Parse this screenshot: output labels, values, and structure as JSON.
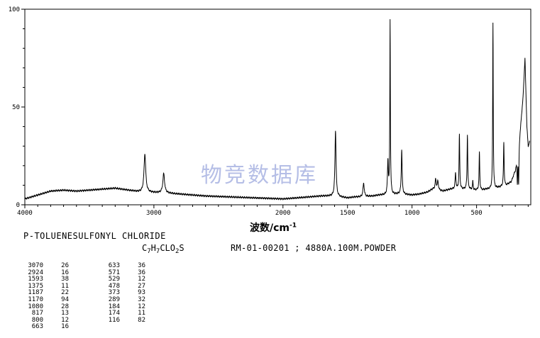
{
  "chart_data": {
    "type": "line",
    "title": "",
    "xlabel": "波数/cm",
    "xlabel_sup": "-1",
    "ylabel": "",
    "xlim": [
      4000,
      80
    ],
    "ylim": [
      0,
      100
    ],
    "x_reversed": true,
    "x_ticks": [
      {
        "value": 4000,
        "label": "4000"
      },
      {
        "value": 3000,
        "label": "3000"
      },
      {
        "value": 2000,
        "label": "2000"
      },
      {
        "value": 1500,
        "label": "1500"
      },
      {
        "value": 1000,
        "label": "1000"
      },
      {
        "value": 500,
        "label": "500"
      }
    ],
    "y_ticks": [
      {
        "value": 100,
        "label": "100"
      },
      {
        "value": 50,
        "label": "50"
      },
      {
        "value": 0,
        "label": "0"
      }
    ],
    "grid": false,
    "line_color": "#000000",
    "baseline_points": [
      [
        4000,
        3
      ],
      [
        3900,
        5
      ],
      [
        3800,
        7
      ],
      [
        3700,
        7.5
      ],
      [
        3600,
        7
      ],
      [
        3500,
        7.5
      ],
      [
        3400,
        8
      ],
      [
        3300,
        8.5
      ],
      [
        3200,
        7.5
      ],
      [
        3100,
        6.5
      ],
      [
        2900,
        6
      ],
      [
        2800,
        5.5
      ],
      [
        2700,
        5
      ],
      [
        2600,
        4.5
      ],
      [
        2400,
        4
      ],
      [
        2200,
        3.5
      ],
      [
        2000,
        3
      ],
      [
        1800,
        4
      ],
      [
        1700,
        4.5
      ],
      [
        1640,
        4.5
      ],
      [
        1560,
        4
      ],
      [
        1500,
        3.5
      ],
      [
        1440,
        4
      ],
      [
        1400,
        4
      ],
      [
        1300,
        4.5
      ],
      [
        1250,
        5
      ],
      [
        1200,
        5
      ],
      [
        1100,
        5.5
      ],
      [
        1000,
        5
      ],
      [
        940,
        5.5
      ],
      [
        880,
        6.5
      ],
      [
        840,
        8
      ],
      [
        800,
        7.5
      ],
      [
        760,
        7
      ],
      [
        700,
        8
      ],
      [
        650,
        8
      ],
      [
        600,
        8
      ],
      [
        560,
        8
      ],
      [
        520,
        7.5
      ],
      [
        460,
        7.5
      ],
      [
        420,
        8
      ],
      [
        380,
        8
      ],
      [
        320,
        9
      ],
      [
        270,
        10
      ],
      [
        230,
        12
      ],
      [
        200,
        18
      ],
      [
        180,
        28
      ],
      [
        160,
        40
      ],
      [
        140,
        55
      ],
      [
        125,
        75
      ],
      [
        110,
        40
      ],
      [
        100,
        30
      ],
      [
        90,
        32
      ]
    ],
    "peaks": [
      {
        "x": 3070,
        "y": 26,
        "w": 8
      },
      {
        "x": 2924,
        "y": 16,
        "w": 8
      },
      {
        "x": 1593,
        "y": 38,
        "w": 5
      },
      {
        "x": 1375,
        "y": 11,
        "w": 6
      },
      {
        "x": 1187,
        "y": 22,
        "w": 4
      },
      {
        "x": 1170,
        "y": 94,
        "w": 2.5
      },
      {
        "x": 1080,
        "y": 28,
        "w": 4
      },
      {
        "x": 817,
        "y": 13,
        "w": 5
      },
      {
        "x": 800,
        "y": 12,
        "w": 5
      },
      {
        "x": 663,
        "y": 16,
        "w": 4
      },
      {
        "x": 633,
        "y": 36,
        "w": 3
      },
      {
        "x": 571,
        "y": 36,
        "w": 3
      },
      {
        "x": 529,
        "y": 12,
        "w": 3
      },
      {
        "x": 478,
        "y": 27,
        "w": 3
      },
      {
        "x": 373,
        "y": 93,
        "w": 2.5
      },
      {
        "x": 289,
        "y": 32,
        "w": 3
      },
      {
        "x": 184,
        "y": 12,
        "w": 3
      },
      {
        "x": 174,
        "y": 11,
        "w": 3
      },
      {
        "x": 116,
        "y": 82,
        "w": 3
      }
    ]
  },
  "compound_name": "P-TOLUENESULFONYL CHLORIDE",
  "formula": {
    "c": "C",
    "c_n": "7",
    "h": "H",
    "h_n": "7",
    "rest": "CLO",
    "o_n": "2",
    "s": "S"
  },
  "reference": "RM-01-00201 ; 4880A.100M.POWDER",
  "watermark": "物竞数据库",
  "peak_table": {
    "col1": [
      {
        "wn": "3070",
        "in": "26"
      },
      {
        "wn": "2924",
        "in": "16"
      },
      {
        "wn": "1593",
        "in": "38"
      },
      {
        "wn": "1375",
        "in": "11"
      },
      {
        "wn": "1187",
        "in": "22"
      },
      {
        "wn": "1170",
        "in": "94"
      },
      {
        "wn": "1080",
        "in": "28"
      },
      {
        "wn": "817",
        "in": "13"
      },
      {
        "wn": "800",
        "in": "12"
      },
      {
        "wn": "663",
        "in": "16"
      }
    ],
    "col2": [
      {
        "wn": "633",
        "in": "36"
      },
      {
        "wn": "571",
        "in": "36"
      },
      {
        "wn": "529",
        "in": "12"
      },
      {
        "wn": "478",
        "in": "27"
      },
      {
        "wn": "373",
        "in": "93"
      },
      {
        "wn": "289",
        "in": "32"
      },
      {
        "wn": "184",
        "in": "12"
      },
      {
        "wn": "174",
        "in": "11"
      },
      {
        "wn": "116",
        "in": "82"
      }
    ]
  }
}
